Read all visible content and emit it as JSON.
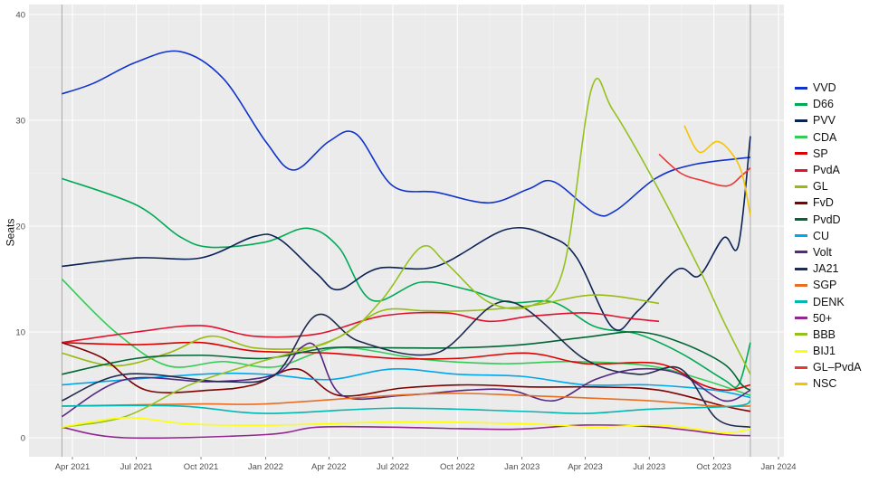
{
  "chart_data": {
    "type": "line",
    "title": "",
    "xlabel": "",
    "ylabel": "Seats",
    "ylim": [
      0,
      40
    ],
    "yticks": [
      0,
      10,
      20,
      30,
      40
    ],
    "xlim": [
      "2021-02-20",
      "2024-01-15"
    ],
    "xticks": [
      {
        "date": "2021-04-01",
        "label": "Apr 2021"
      },
      {
        "date": "2021-07-01",
        "label": "Jul 2021"
      },
      {
        "date": "2021-10-01",
        "label": "Oct 2021"
      },
      {
        "date": "2022-01-01",
        "label": "Jan 2022"
      },
      {
        "date": "2022-04-01",
        "label": "Apr 2022"
      },
      {
        "date": "2022-07-01",
        "label": "Jul 2022"
      },
      {
        "date": "2022-10-01",
        "label": "Oct 2022"
      },
      {
        "date": "2023-01-01",
        "label": "Jan 2023"
      },
      {
        "date": "2023-04-01",
        "label": "Apr 2023"
      },
      {
        "date": "2023-07-01",
        "label": "Jul 2023"
      },
      {
        "date": "2023-10-01",
        "label": "Oct 2023"
      },
      {
        "date": "2024-01-01",
        "label": "Jan 2024"
      }
    ],
    "election_lines": [
      "2021-03-17",
      "2023-11-22"
    ],
    "grid": true,
    "legend_position": "right",
    "series": [
      {
        "name": "VVD",
        "color": "#1133cc",
        "points": [
          [
            "2021-03-17",
            32.5
          ],
          [
            "2021-05-01",
            33.5
          ],
          [
            "2021-07-01",
            35.5
          ],
          [
            "2021-09-01",
            36.5
          ],
          [
            "2021-11-01",
            34
          ],
          [
            "2022-01-01",
            28
          ],
          [
            "2022-02-10",
            25.3
          ],
          [
            "2022-04-01",
            28
          ],
          [
            "2022-05-10",
            28.7
          ],
          [
            "2022-07-01",
            23.8
          ],
          [
            "2022-09-01",
            23.2
          ],
          [
            "2022-11-15",
            22.2
          ],
          [
            "2023-01-10",
            23.5
          ],
          [
            "2023-02-15",
            24.2
          ],
          [
            "2023-04-15",
            21.2
          ],
          [
            "2023-05-15",
            21.5
          ],
          [
            "2023-07-10",
            24.5
          ],
          [
            "2023-09-01",
            25.8
          ],
          [
            "2023-11-22",
            26.5
          ]
        ]
      },
      {
        "name": "D66",
        "color": "#00aa55",
        "points": [
          [
            "2021-03-17",
            24.5
          ],
          [
            "2021-07-01",
            22
          ],
          [
            "2021-09-01",
            19
          ],
          [
            "2021-10-15",
            18
          ],
          [
            "2022-01-01",
            18.5
          ],
          [
            "2022-03-01",
            19.8
          ],
          [
            "2022-04-15",
            18
          ],
          [
            "2022-06-01",
            13
          ],
          [
            "2022-08-10",
            14.7
          ],
          [
            "2022-10-15",
            14
          ],
          [
            "2022-12-15",
            12.8
          ],
          [
            "2023-02-15",
            12.8
          ],
          [
            "2023-04-15",
            10.5
          ],
          [
            "2023-06-15",
            9.8
          ],
          [
            "2023-08-15",
            8
          ],
          [
            "2023-10-15",
            5.5
          ],
          [
            "2023-11-05",
            5
          ],
          [
            "2023-11-22",
            9
          ]
        ]
      },
      {
        "name": "PVV",
        "color": "#0b2255",
        "points": [
          [
            "2021-03-17",
            16.2
          ],
          [
            "2021-07-01",
            17
          ],
          [
            "2021-10-01",
            17
          ],
          [
            "2021-12-15",
            19
          ],
          [
            "2022-01-20",
            18.8
          ],
          [
            "2022-03-15",
            15.5
          ],
          [
            "2022-04-15",
            14
          ],
          [
            "2022-06-10",
            16
          ],
          [
            "2022-09-01",
            16.2
          ],
          [
            "2022-12-10",
            19.7
          ],
          [
            "2023-02-10",
            19
          ],
          [
            "2023-03-20",
            17
          ],
          [
            "2023-05-10",
            10.4
          ],
          [
            "2023-06-15",
            12
          ],
          [
            "2023-08-10",
            15.9
          ],
          [
            "2023-09-10",
            15.3
          ],
          [
            "2023-10-15",
            18.9
          ],
          [
            "2023-11-05",
            18.2
          ],
          [
            "2023-11-22",
            28.5
          ]
        ]
      },
      {
        "name": "CDA",
        "color": "#33cc55",
        "points": [
          [
            "2021-03-17",
            15
          ],
          [
            "2021-06-01",
            10
          ],
          [
            "2021-08-15",
            6.8
          ],
          [
            "2021-11-01",
            7.2
          ],
          [
            "2022-01-15",
            6.7
          ],
          [
            "2022-04-15",
            8.5
          ],
          [
            "2022-08-15",
            7.4
          ],
          [
            "2022-12-01",
            7
          ],
          [
            "2023-03-15",
            7.2
          ],
          [
            "2023-07-01",
            6.8
          ],
          [
            "2023-09-15",
            5.5
          ],
          [
            "2023-11-22",
            4
          ]
        ]
      },
      {
        "name": "SP",
        "color": "#dd0000",
        "points": [
          [
            "2021-03-17",
            9
          ],
          [
            "2021-07-01",
            8.8
          ],
          [
            "2021-10-01",
            9
          ],
          [
            "2021-12-15",
            8.2
          ],
          [
            "2022-04-01",
            8
          ],
          [
            "2022-07-01",
            7.5
          ],
          [
            "2022-10-01",
            7.5
          ],
          [
            "2023-01-10",
            8
          ],
          [
            "2023-04-01",
            7
          ],
          [
            "2023-07-15",
            7
          ],
          [
            "2023-09-15",
            5
          ],
          [
            "2023-10-20",
            4.5
          ],
          [
            "2023-11-22",
            5
          ]
        ]
      },
      {
        "name": "PvdA",
        "color": "#e3102e",
        "points": [
          [
            "2021-03-17",
            9
          ],
          [
            "2021-07-01",
            10
          ],
          [
            "2021-10-01",
            10.6
          ],
          [
            "2021-12-15",
            9.6
          ],
          [
            "2022-03-15",
            9.8
          ],
          [
            "2022-06-15",
            11.5
          ],
          [
            "2022-09-15",
            11.8
          ],
          [
            "2022-11-15",
            11
          ],
          [
            "2023-01-15",
            11.5
          ],
          [
            "2023-04-01",
            11.8
          ],
          [
            "2023-06-01",
            11.3
          ],
          [
            "2023-07-15",
            11
          ]
        ]
      },
      {
        "name": "GL",
        "color": "#99bb11",
        "points": [
          [
            "2021-03-17",
            8
          ],
          [
            "2021-06-01",
            6.8
          ],
          [
            "2021-08-15",
            8
          ],
          [
            "2021-10-15",
            9.6
          ],
          [
            "2021-12-15",
            8.5
          ],
          [
            "2022-03-01",
            8.5
          ],
          [
            "2022-04-15",
            9.5
          ],
          [
            "2022-06-15",
            12
          ],
          [
            "2022-08-15",
            12
          ],
          [
            "2022-10-15",
            12
          ],
          [
            "2023-01-15",
            12.5
          ],
          [
            "2023-04-15",
            13.5
          ],
          [
            "2023-07-15",
            12.7
          ]
        ]
      },
      {
        "name": "FvD",
        "color": "#800000",
        "points": [
          [
            "2021-03-17",
            9
          ],
          [
            "2021-05-15",
            7.5
          ],
          [
            "2021-07-15",
            4.5
          ],
          [
            "2021-10-15",
            4.5
          ],
          [
            "2021-12-15",
            5
          ],
          [
            "2022-02-15",
            6.5
          ],
          [
            "2022-04-15",
            4
          ],
          [
            "2022-07-15",
            4.7
          ],
          [
            "2022-10-15",
            5
          ],
          [
            "2023-01-15",
            4.8
          ],
          [
            "2023-04-15",
            4.8
          ],
          [
            "2023-07-15",
            4.5
          ],
          [
            "2023-10-15",
            3
          ],
          [
            "2023-11-22",
            2.5
          ]
        ]
      },
      {
        "name": "PvdD",
        "color": "#006633",
        "points": [
          [
            "2021-03-17",
            6
          ],
          [
            "2021-07-01",
            7.5
          ],
          [
            "2021-10-01",
            7.8
          ],
          [
            "2022-01-01",
            7.5
          ],
          [
            "2022-04-01",
            8.5
          ],
          [
            "2022-07-01",
            8.5
          ],
          [
            "2022-10-01",
            8.5
          ],
          [
            "2023-01-01",
            8.8
          ],
          [
            "2023-04-01",
            9.5
          ],
          [
            "2023-06-15",
            10
          ],
          [
            "2023-08-15",
            9
          ],
          [
            "2023-10-15",
            7
          ],
          [
            "2023-11-10",
            5
          ],
          [
            "2023-11-22",
            4.5
          ]
        ]
      },
      {
        "name": "CU",
        "color": "#00a7eb",
        "points": [
          [
            "2021-03-17",
            5
          ],
          [
            "2021-10-01",
            6
          ],
          [
            "2022-01-01",
            6
          ],
          [
            "2022-04-01",
            5.5
          ],
          [
            "2022-07-01",
            6.5
          ],
          [
            "2022-10-01",
            6
          ],
          [
            "2023-01-01",
            5.8
          ],
          [
            "2023-04-01",
            5
          ],
          [
            "2023-07-01",
            5
          ],
          [
            "2023-10-01",
            4.5
          ],
          [
            "2023-11-22",
            3.8
          ]
        ]
      },
      {
        "name": "Volt",
        "color": "#562883",
        "points": [
          [
            "2021-03-17",
            2
          ],
          [
            "2021-06-15",
            5.5
          ],
          [
            "2021-10-15",
            5.3
          ],
          [
            "2022-01-15",
            6
          ],
          [
            "2022-02-20",
            8.5
          ],
          [
            "2022-03-15",
            8.5
          ],
          [
            "2022-04-20",
            4
          ],
          [
            "2022-07-15",
            4
          ],
          [
            "2022-10-15",
            4.5
          ],
          [
            "2022-12-15",
            4.5
          ],
          [
            "2023-02-15",
            3.5
          ],
          [
            "2023-04-15",
            5.5
          ],
          [
            "2023-06-15",
            6.5
          ],
          [
            "2023-08-15",
            6
          ],
          [
            "2023-10-15",
            3.5
          ],
          [
            "2023-11-22",
            4.5
          ]
        ]
      },
      {
        "name": "JA21",
        "color": "#1f2b4f",
        "points": [
          [
            "2021-03-17",
            3.5
          ],
          [
            "2021-06-15",
            6
          ],
          [
            "2021-11-01",
            5.3
          ],
          [
            "2022-01-15",
            6
          ],
          [
            "2022-03-15",
            11.6
          ],
          [
            "2022-05-15",
            9.1
          ],
          [
            "2022-09-01",
            8
          ],
          [
            "2022-12-10",
            12.9
          ],
          [
            "2023-04-01",
            7.4
          ],
          [
            "2023-06-15",
            6
          ],
          [
            "2023-08-15",
            6.5
          ],
          [
            "2023-10-05",
            1.8
          ],
          [
            "2023-11-22",
            1
          ]
        ]
      },
      {
        "name": "SGP",
        "color": "#e96d22",
        "points": [
          [
            "2021-03-17",
            3
          ],
          [
            "2021-10-01",
            3.2
          ],
          [
            "2022-01-01",
            3.2
          ],
          [
            "2022-07-01",
            4
          ],
          [
            "2022-10-01",
            4.2
          ],
          [
            "2023-01-01",
            4
          ],
          [
            "2023-07-01",
            3.5
          ],
          [
            "2023-10-01",
            3
          ],
          [
            "2023-11-22",
            3
          ]
        ]
      },
      {
        "name": "DENK",
        "color": "#00b7b2",
        "points": [
          [
            "2021-03-17",
            3
          ],
          [
            "2021-09-01",
            3
          ],
          [
            "2022-01-01",
            2.3
          ],
          [
            "2022-07-01",
            2.8
          ],
          [
            "2023-01-01",
            2.5
          ],
          [
            "2023-04-01",
            2.3
          ],
          [
            "2023-07-01",
            2.7
          ],
          [
            "2023-11-01",
            3
          ],
          [
            "2023-11-22",
            3.5
          ]
        ]
      },
      {
        "name": "50+",
        "color": "#92278f",
        "points": [
          [
            "2021-03-17",
            1
          ],
          [
            "2021-06-15",
            0
          ],
          [
            "2022-01-01",
            0.3
          ],
          [
            "2022-03-15",
            1
          ],
          [
            "2022-07-01",
            1
          ],
          [
            "2022-12-15",
            0.8
          ],
          [
            "2023-04-01",
            1.2
          ],
          [
            "2023-07-15",
            1
          ],
          [
            "2023-10-15",
            0.3
          ],
          [
            "2023-11-22",
            0.2
          ]
        ]
      },
      {
        "name": "BBB",
        "color": "#95c11f",
        "points": [
          [
            "2021-03-17",
            1
          ],
          [
            "2021-06-15",
            2
          ],
          [
            "2021-09-15",
            5
          ],
          [
            "2021-12-15",
            7
          ],
          [
            "2022-04-15",
            9.5
          ],
          [
            "2022-06-15",
            13
          ],
          [
            "2022-08-10",
            18
          ],
          [
            "2022-09-15",
            16.5
          ],
          [
            "2022-11-15",
            12.8
          ],
          [
            "2023-01-15",
            12.5
          ],
          [
            "2023-03-01",
            16
          ],
          [
            "2023-04-10",
            33
          ],
          [
            "2023-05-10",
            31
          ],
          [
            "2023-07-10",
            24
          ],
          [
            "2023-09-10",
            16
          ],
          [
            "2023-10-15",
            11
          ],
          [
            "2023-11-22",
            6
          ]
        ]
      },
      {
        "name": "BIJ1",
        "color": "#ffff00",
        "points": [
          [
            "2021-03-17",
            1
          ],
          [
            "2021-06-15",
            1.9
          ],
          [
            "2021-09-15",
            1.3
          ],
          [
            "2022-01-15",
            1.2
          ],
          [
            "2022-07-15",
            1.5
          ],
          [
            "2023-01-15",
            1.3
          ],
          [
            "2023-04-15",
            1
          ],
          [
            "2023-07-15",
            1.2
          ],
          [
            "2023-10-15",
            0.5
          ],
          [
            "2023-11-22",
            0.8
          ]
        ]
      },
      {
        "name": "GL–PvdA",
        "color": "#ee3333",
        "points": [
          [
            "2023-07-15",
            26.8
          ],
          [
            "2023-08-15",
            25
          ],
          [
            "2023-09-15",
            24.3
          ],
          [
            "2023-10-20",
            23.8
          ],
          [
            "2023-11-10",
            24.8
          ],
          [
            "2023-11-22",
            25.5
          ]
        ]
      },
      {
        "name": "NSC",
        "color": "#f5c400",
        "points": [
          [
            "2023-08-20",
            29.5
          ],
          [
            "2023-09-10",
            27
          ],
          [
            "2023-10-05",
            28
          ],
          [
            "2023-10-25",
            27
          ],
          [
            "2023-11-10",
            25
          ],
          [
            "2023-11-22",
            21
          ]
        ]
      }
    ]
  }
}
